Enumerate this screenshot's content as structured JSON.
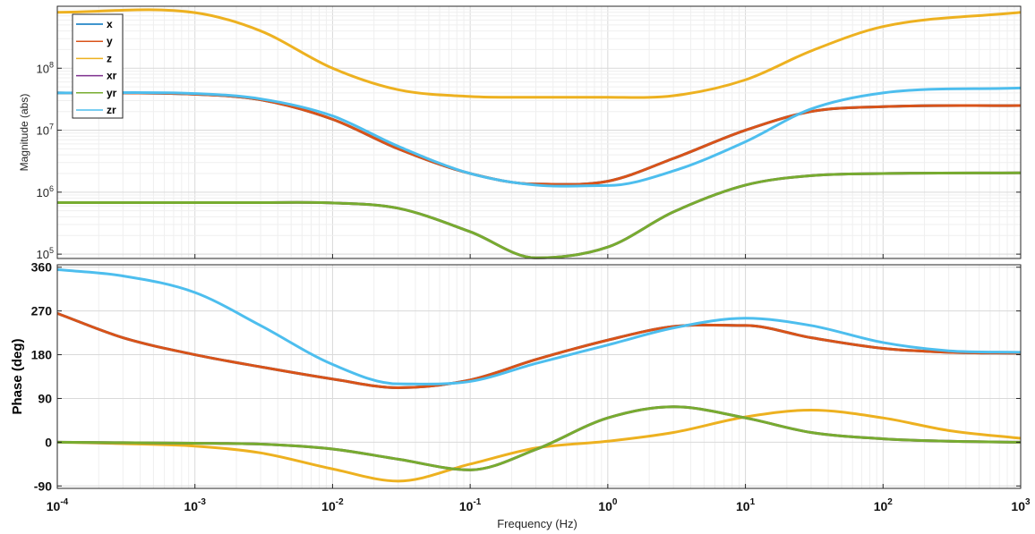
{
  "chart_data": [
    {
      "type": "line",
      "name": "magnitude",
      "xscale": "log",
      "yscale": "log",
      "xlim": [
        0.0001,
        1000
      ],
      "ylim": [
        85000,
        1000000000
      ],
      "ylabel": "Magnitude (abs)",
      "grid": true,
      "legend": {
        "placement": "top-left",
        "entries": [
          "x",
          "y",
          "z",
          "xr",
          "yr",
          "zr"
        ]
      },
      "yticks": [
        {
          "base": "10",
          "exp": "5",
          "value": 100000
        },
        {
          "base": "10",
          "exp": "6",
          "value": 1000000
        },
        {
          "base": "10",
          "exp": "7",
          "value": 10000000
        },
        {
          "base": "10",
          "exp": "8",
          "value": 100000000
        }
      ],
      "x": [
        0.0001,
        0.001,
        0.003,
        0.01,
        0.03,
        0.1,
        0.3,
        1,
        3,
        10,
        30,
        100,
        1000
      ],
      "series": [
        {
          "name": "x",
          "color": "#0072BD",
          "values": [
            40000000,
            38000000,
            31000000,
            15000000,
            5000000,
            2000000,
            1350000,
            1500000,
            3500000,
            10000000,
            20000000,
            24000000,
            25000000
          ]
        },
        {
          "name": "y",
          "color": "#D95319",
          "values": [
            40000000,
            38000000,
            31000000,
            15000000,
            5000000,
            2000000,
            1350000,
            1500000,
            3500000,
            10000000,
            20000000,
            24000000,
            25000000
          ]
        },
        {
          "name": "z",
          "color": "#EDB120",
          "values": [
            800000000,
            790000000,
            400000000,
            100000000,
            45000000,
            35000000,
            34000000,
            34000000,
            36000000,
            65000000,
            190000000,
            470000000,
            800000000
          ]
        },
        {
          "name": "xr",
          "color": "#7E2F8E",
          "values": [
            680000,
            680000,
            680000,
            670000,
            550000,
            230000,
            87000,
            130000,
            480000,
            1300000,
            1850000,
            2000000,
            2050000
          ]
        },
        {
          "name": "yr",
          "color": "#77AC30",
          "values": [
            680000,
            680000,
            680000,
            670000,
            550000,
            230000,
            87000,
            130000,
            480000,
            1300000,
            1850000,
            2000000,
            2050000
          ]
        },
        {
          "name": "zr",
          "color": "#4DBEEE",
          "values": [
            40000000,
            39000000,
            32000000,
            17000000,
            5500000,
            2000000,
            1300000,
            1280000,
            2200000,
            6500000,
            22000000,
            40000000,
            48000000
          ]
        }
      ]
    },
    {
      "type": "line",
      "name": "phase",
      "xscale": "log",
      "xlim": [
        0.0001,
        1000
      ],
      "ylim": [
        -95,
        365
      ],
      "xlabel": "Frequency (Hz)",
      "ylabel": "Phase (deg)",
      "grid": true,
      "yticks": [
        "-90",
        "0",
        "90",
        "180",
        "270",
        "360"
      ],
      "xticks": [
        {
          "base": "10",
          "exp": "-4",
          "value": 0.0001
        },
        {
          "base": "10",
          "exp": "-3",
          "value": 0.001
        },
        {
          "base": "10",
          "exp": "-2",
          "value": 0.01
        },
        {
          "base": "10",
          "exp": "-1",
          "value": 0.1
        },
        {
          "base": "10",
          "exp": "0",
          "value": 1
        },
        {
          "base": "10",
          "exp": "1",
          "value": 10
        },
        {
          "base": "10",
          "exp": "2",
          "value": 100
        },
        {
          "base": "10",
          "exp": "3",
          "value": 1000
        }
      ],
      "x": [
        0.0001,
        0.0003,
        0.001,
        0.003,
        0.01,
        0.03,
        0.1,
        0.3,
        1,
        3,
        10,
        30,
        100,
        300,
        1000
      ],
      "series": [
        {
          "name": "x",
          "color": "#0072BD",
          "values": [
            265,
            215,
            180,
            155,
            130,
            112,
            128,
            170,
            210,
            238,
            240,
            215,
            193,
            185,
            183
          ]
        },
        {
          "name": "y",
          "color": "#D95319",
          "values": [
            265,
            215,
            180,
            155,
            130,
            112,
            128,
            170,
            210,
            238,
            240,
            215,
            193,
            185,
            183
          ]
        },
        {
          "name": "z",
          "color": "#EDB120",
          "values": [
            0,
            -3,
            -8,
            -22,
            -55,
            -80,
            -45,
            -12,
            2,
            20,
            52,
            66,
            50,
            24,
            8
          ]
        },
        {
          "name": "xr",
          "color": "#7E2F8E",
          "values": [
            0,
            -1,
            -2,
            -4,
            -14,
            -35,
            -57,
            -15,
            50,
            73,
            50,
            20,
            7,
            2,
            0
          ]
        },
        {
          "name": "yr",
          "color": "#77AC30",
          "values": [
            0,
            -1,
            -2,
            -4,
            -14,
            -35,
            -57,
            -15,
            50,
            73,
            50,
            20,
            7,
            2,
            0
          ]
        },
        {
          "name": "zr",
          "color": "#4DBEEE",
          "values": [
            355,
            342,
            308,
            240,
            160,
            120,
            125,
            162,
            200,
            235,
            255,
            240,
            205,
            188,
            185
          ]
        }
      ]
    }
  ]
}
